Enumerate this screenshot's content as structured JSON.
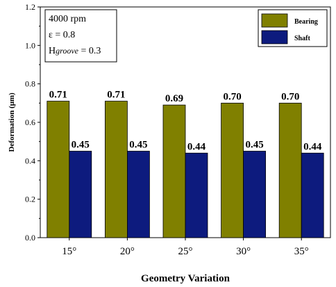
{
  "chart_data": {
    "type": "bar",
    "categories": [
      "15°",
      "20°",
      "25°",
      "30°",
      "35°"
    ],
    "series": [
      {
        "name": "Bearing",
        "values": [
          0.71,
          0.71,
          0.69,
          0.7,
          0.7
        ],
        "labels": [
          "0.71",
          "0.71",
          "0.69",
          "0.70",
          "0.70"
        ],
        "color": "#808000"
      },
      {
        "name": "Shaft",
        "values": [
          0.45,
          0.45,
          0.44,
          0.45,
          0.44
        ],
        "labels": [
          "0.45",
          "0.45",
          "0.44",
          "0.45",
          "0.44"
        ],
        "color": "#0d1b7e"
      }
    ],
    "ylim": [
      0,
      1.2
    ],
    "yticks": [
      "0.0",
      "0.2",
      "0.4",
      "0.6",
      "0.8",
      "1.0",
      "1.2"
    ],
    "ylabel": "Deformation (μm)",
    "xlabel": "Geometry Variation",
    "grid": false,
    "legend_position": "top-right"
  },
  "annotation": {
    "speed": "4000 rpm",
    "eccentricity": "ε = 0.8",
    "groove_prefix": "H",
    "groove_sub": "groove",
    "groove_value": " = 0.3"
  }
}
